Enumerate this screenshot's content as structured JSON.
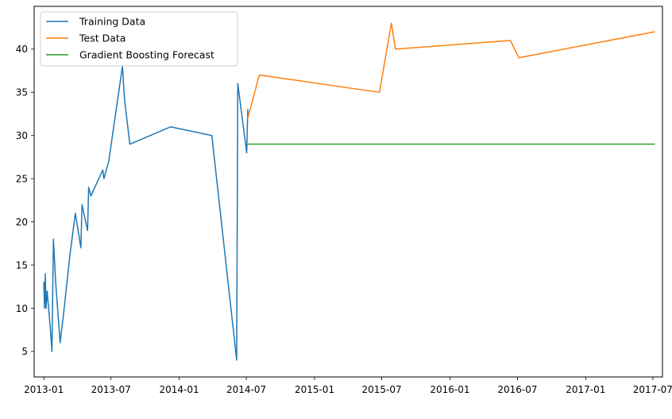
{
  "chart_data": {
    "type": "line",
    "x_axis_type": "date",
    "xlim": [
      "2012-12-06",
      "2017-07-27"
    ],
    "ylim": [
      2.05,
      44.95
    ],
    "x_ticks": [
      "2013-01",
      "2013-07",
      "2014-01",
      "2014-07",
      "2015-01",
      "2015-07",
      "2016-01",
      "2016-07",
      "2017-01",
      "2017-07"
    ],
    "y_ticks": [
      5,
      10,
      15,
      20,
      25,
      30,
      35,
      40
    ],
    "grid": false,
    "legend_position": "top-left",
    "series": [
      {
        "name": "Training Data",
        "color": "#1f77b4",
        "points": [
          [
            "2013-01-01",
            13
          ],
          [
            "2013-01-03",
            10
          ],
          [
            "2013-01-05",
            14
          ],
          [
            "2013-01-07",
            10
          ],
          [
            "2013-01-10",
            12
          ],
          [
            "2013-01-18",
            8
          ],
          [
            "2013-01-23",
            5
          ],
          [
            "2013-01-27",
            18
          ],
          [
            "2013-02-02",
            13
          ],
          [
            "2013-02-14",
            6
          ],
          [
            "2013-02-25",
            10
          ],
          [
            "2013-03-12",
            16
          ],
          [
            "2013-03-27",
            21
          ],
          [
            "2013-04-11",
            17
          ],
          [
            "2013-04-14",
            22
          ],
          [
            "2013-04-29",
            19
          ],
          [
            "2013-05-02",
            24
          ],
          [
            "2013-05-08",
            23
          ],
          [
            "2013-06-09",
            26
          ],
          [
            "2013-06-12",
            25
          ],
          [
            "2013-06-25",
            27
          ],
          [
            "2013-08-01",
            38
          ],
          [
            "2013-08-07",
            34
          ],
          [
            "2013-08-21",
            29
          ],
          [
            "2013-12-09",
            31
          ],
          [
            "2014-03-30",
            30
          ],
          [
            "2014-06-05",
            4
          ],
          [
            "2014-06-08",
            36
          ],
          [
            "2014-07-02",
            28
          ],
          [
            "2014-07-05",
            33
          ]
        ]
      },
      {
        "name": "Test Data",
        "color": "#ff7f0e",
        "points": [
          [
            "2014-07-05",
            32
          ],
          [
            "2014-08-05",
            37
          ],
          [
            "2015-06-25",
            35
          ],
          [
            "2015-07-27",
            43
          ],
          [
            "2015-08-07",
            40
          ],
          [
            "2016-06-12",
            41
          ],
          [
            "2016-07-05",
            39
          ],
          [
            "2017-07-05",
            42
          ]
        ]
      },
      {
        "name": "Gradient Boosting Forecast",
        "color": "#2ca02c",
        "points": [
          [
            "2014-07-05",
            29
          ],
          [
            "2017-07-05",
            29
          ]
        ]
      }
    ]
  }
}
